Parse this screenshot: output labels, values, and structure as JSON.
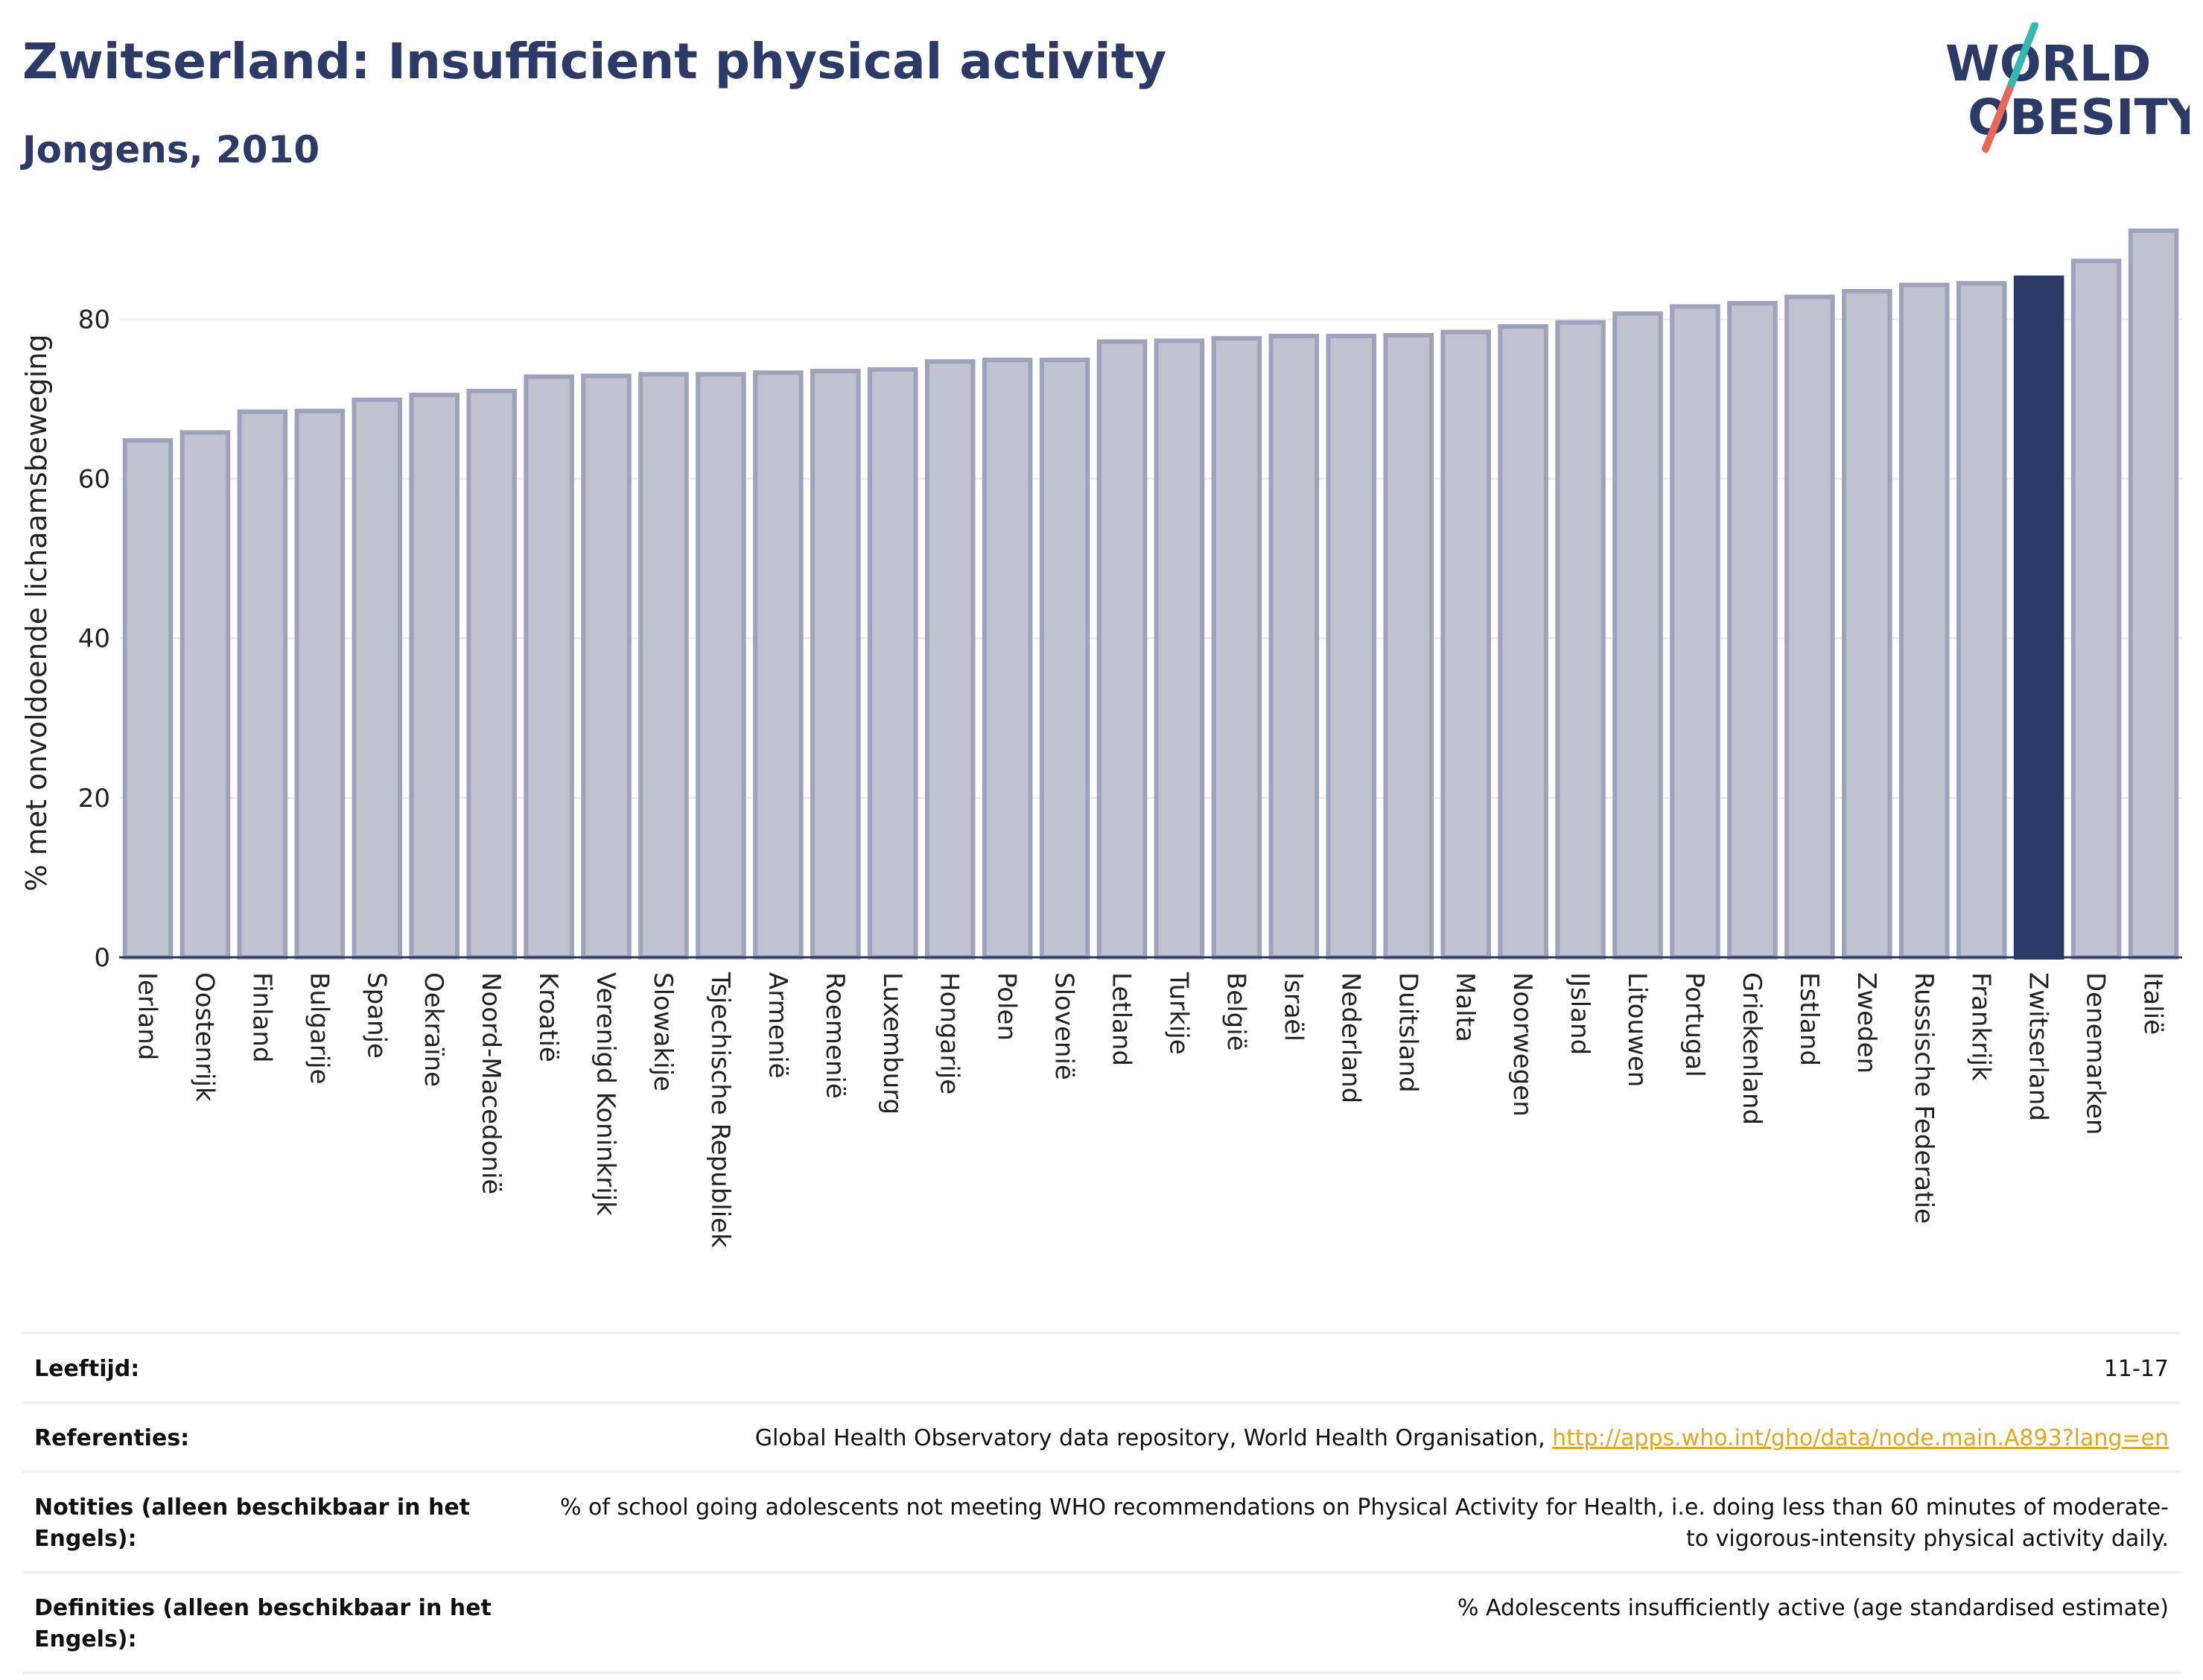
{
  "header": {
    "title": "Zwitserland: Insufficient physical activity",
    "subtitle": "Jongens, 2010"
  },
  "logo": {
    "line1": "WORLD",
    "line2": "OBESITY",
    "icon": "world-obesity-logo"
  },
  "colors": {
    "bar": "#bfc2cf",
    "bar_edge": "#9ea3bb",
    "highlight": "#2b3a67",
    "title": "#2b3a67",
    "link": "#e7a51b"
  },
  "chart_data": {
    "type": "bar",
    "title": "Zwitserland: Insufficient physical activity",
    "subtitle": "Jongens, 2010",
    "xlabel": "",
    "ylabel": "% met onvoldoende lichaamsbeweging",
    "ylim": [
      0,
      92
    ],
    "yticks": [
      0,
      20,
      40,
      60,
      80
    ],
    "grid": true,
    "highlight": "Zwitserland",
    "categories": [
      "Ierland",
      "Oostenrijk",
      "Finland",
      "Bulgarije",
      "Spanje",
      "Oekraïne",
      "Noord-Macedonië",
      "Kroatië",
      "Verenigd Koninkrijk",
      "Slowakije",
      "Tsjechische Republiek",
      "Armenië",
      "Roemenië",
      "Luxemburg",
      "Hongarije",
      "Polen",
      "Slovenië",
      "Letland",
      "Turkije",
      "België",
      "Israël",
      "Nederland",
      "Duitsland",
      "Malta",
      "Noorwegen",
      "IJsland",
      "Litouwen",
      "Portugal",
      "Griekenland",
      "Estland",
      "Zweden",
      "Russische Federatie",
      "Frankrijk",
      "Zwitserland",
      "Denemarken",
      "Italië"
    ],
    "values": [
      64.8,
      65.8,
      68.4,
      68.5,
      69.9,
      70.5,
      71.0,
      72.8,
      72.9,
      73.1,
      73.1,
      73.3,
      73.5,
      73.7,
      74.7,
      74.9,
      74.9,
      77.2,
      77.3,
      77.6,
      77.9,
      77.9,
      78.0,
      78.4,
      79.1,
      79.6,
      80.7,
      81.6,
      82.0,
      82.8,
      83.5,
      84.3,
      84.5,
      85.2,
      87.3,
      91.1
    ]
  },
  "meta": [
    {
      "label": "Leeftijd:",
      "value": "11-17"
    },
    {
      "label": "Referenties:",
      "value": "Global Health Observatory data repository, World Health Organisation, ",
      "link": "http://apps.who.int/gho/data/node.main.A893?lang=en"
    },
    {
      "label": "Notities (alleen beschikbaar in het Engels):",
      "value": "% of school going adolescents not meeting WHO recommendations on Physical Activity for Health, i.e. doing less than 60 minutes of moderate- to vigorous-intensity physical activity daily."
    },
    {
      "label": "Definities (alleen beschikbaar in het Engels):",
      "value": "% Adolescents insufficiently active (age standardised estimate)"
    }
  ]
}
